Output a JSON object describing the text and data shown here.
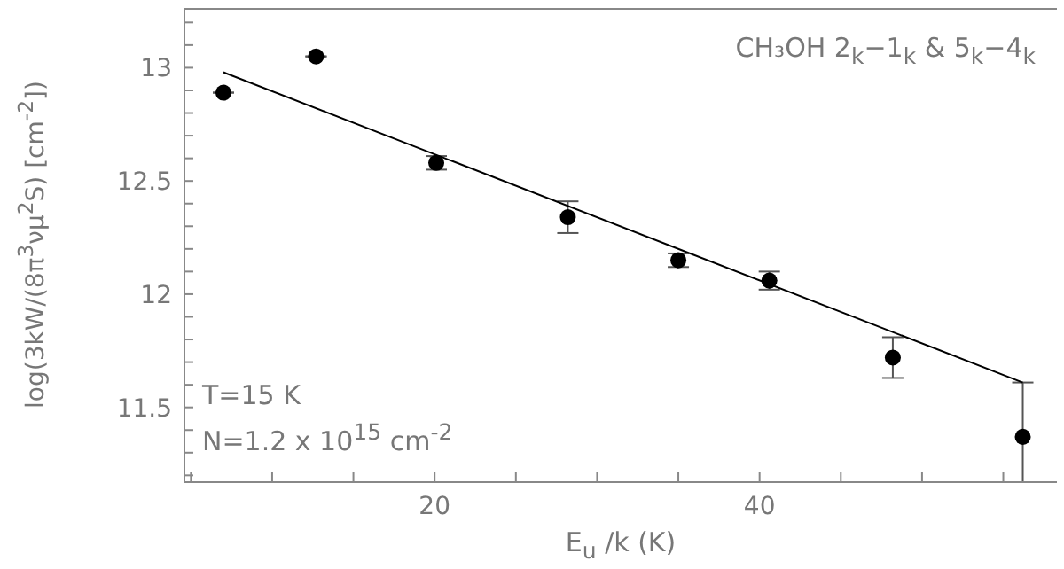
{
  "chart_data": {
    "type": "scatter",
    "xlabel": "E$_{u}$ /k (K)",
    "ylabel": "log(3kW/(8π$^{3}$νμ$^{2}$S) [cm$^{-2}$])",
    "annotations": [
      "CH₃OH 2$_{k}$−1$_{k}$ & 5$_{k}$−4$_{k}$",
      "T=15 K",
      "N=1.2 x 10$^{15}$ cm$^{-2}$"
    ],
    "series": [
      {
        "color": "#000000",
        "marker": "circle",
        "x": [
          7.0,
          12.7,
          20.1,
          28.2,
          35.0,
          40.6,
          48.2,
          56.2
        ],
        "values": [
          12.89,
          13.05,
          12.58,
          12.34,
          12.15,
          12.06,
          11.72,
          11.37
        ],
        "errors": [
          null,
          null,
          0.03,
          0.07,
          0.03,
          0.04,
          0.09,
          [
            11.17,
            11.61
          ]
        ]
      },
      {
        "type": "line",
        "color": "#000000",
        "x": [
          7.0,
          56.2
        ],
        "values": [
          12.98,
          11.61
        ]
      }
    ],
    "xlim": [
      4.6,
      58.3
    ],
    "xticks": [
      {
        "value": 5,
        "label": null
      },
      {
        "value": 10,
        "label": null
      },
      {
        "value": 15,
        "label": null
      },
      20,
      {
        "value": 25,
        "label": null
      },
      {
        "value": 30,
        "label": null
      },
      {
        "value": 35,
        "label": null
      },
      40,
      {
        "value": 45,
        "label": null
      },
      {
        "value": 50,
        "label": null
      },
      {
        "value": 55,
        "label": null
      }
    ],
    "ylim": [
      11.17,
      13.26
    ],
    "yticks": [
      {
        "value": 11.2,
        "label": null
      },
      {
        "value": 11.3,
        "label": null
      },
      {
        "value": 11.4,
        "label": null
      },
      11.5,
      {
        "value": 11.6,
        "label": null
      },
      {
        "value": 11.7,
        "label": null
      },
      {
        "value": 11.8,
        "label": null
      },
      {
        "value": 11.9,
        "label": null
      },
      12,
      {
        "value": 12.1,
        "label": null
      },
      {
        "value": 12.2,
        "label": null
      },
      {
        "value": 12.3,
        "label": null
      },
      {
        "value": 12.4,
        "label": null
      },
      12.5,
      {
        "value": 12.6,
        "label": null
      },
      {
        "value": 12.7,
        "label": null
      },
      {
        "value": 12.8,
        "label": null
      },
      {
        "value": 12.9,
        "label": null
      },
      13,
      {
        "value": 13.1,
        "label": null
      },
      {
        "value": 13.2,
        "label": null
      }
    ],
    "tick_labels": true
  }
}
